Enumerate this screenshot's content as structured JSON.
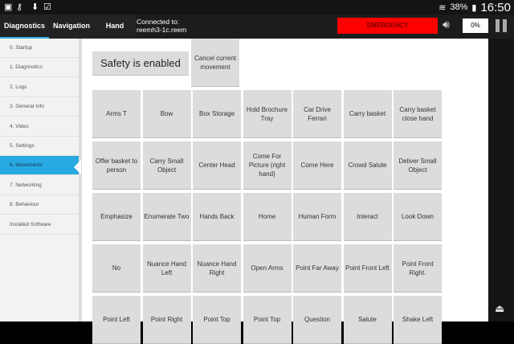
{
  "status_bar": {
    "battery": "38%",
    "time": "16:50",
    "icons": [
      "gallery-icon",
      "key-icon",
      "download-icon",
      "clipboard-check-icon",
      "wifi-icon",
      "battery-icon"
    ]
  },
  "header": {
    "tabs": [
      {
        "label": "Diagnostics",
        "active": true
      },
      {
        "label": "Navigation"
      },
      {
        "label": "Hand"
      }
    ],
    "connection_label": "Connected to:",
    "connection_host": "reemh3-1c.reem",
    "emergency_label": "EMERGENCY",
    "emergency_color": "#ff0000",
    "volume_percent": "0%"
  },
  "sidebar": {
    "items": [
      {
        "label": "0. Startup"
      },
      {
        "label": "1. Diagnostics"
      },
      {
        "label": "2. Logs"
      },
      {
        "label": "3. General Info"
      },
      {
        "label": "4. Video"
      },
      {
        "label": "5. Settings"
      },
      {
        "label": "6. Movements",
        "active": true
      },
      {
        "label": "7. Networking"
      },
      {
        "label": "8. Behaviour"
      },
      {
        "label": "Installed Software"
      }
    ],
    "accent": "#29a9e1"
  },
  "main": {
    "safety_label": "Safety is enabled",
    "cancel_label": "Cancel current movement",
    "movements": [
      "Arms T",
      "Bow",
      "Box Storage",
      "Hold Brochure Tray",
      "Car Drive Ferrari",
      "Carry basket",
      "Carry basket close hand",
      "Offer basket to person",
      "Carry Small Object",
      "Center Head",
      "Come For Picture (right hand)",
      "Come Here",
      "Crowd Salute",
      "Deliver Small Object",
      "Emphasize",
      "Enumerate Two",
      "Hands Back",
      "Home",
      "Human Form",
      "Interact",
      "Look Down",
      "No",
      "Nuance Hand Left",
      "Nuance Hand Right",
      "Open Arms",
      "Point Far Away",
      "Point Front Left",
      "Point Front Right.",
      "Point Left",
      "Point Right",
      "Point Top",
      "Point Top",
      "Question",
      "Salute",
      "Shake Left"
    ]
  }
}
